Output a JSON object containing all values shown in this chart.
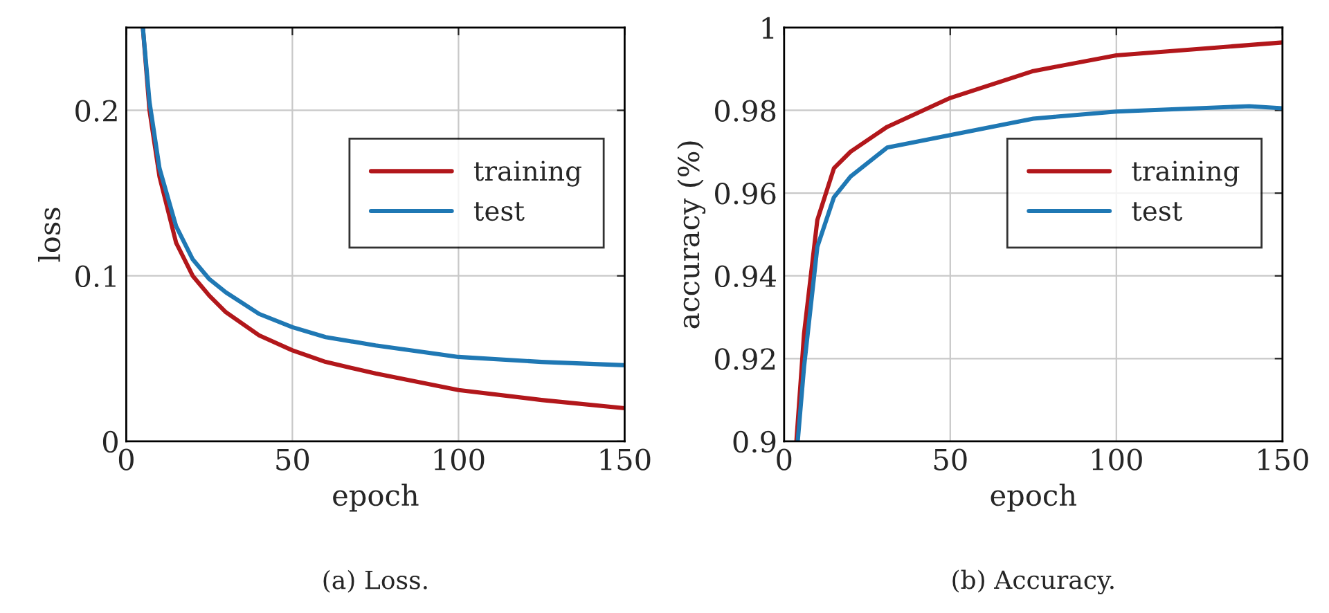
{
  "chart_data": [
    {
      "type": "line",
      "xlabel": "epoch",
      "ylabel": "loss",
      "xlim": [
        0,
        150
      ],
      "ylim": [
        0,
        0.25
      ],
      "xticks": [
        0,
        50,
        100,
        150
      ],
      "yticks": [
        0,
        0.1,
        0.2
      ],
      "grid": true,
      "legend": "right",
      "marker": "none",
      "line_style": "solid",
      "annotations": [
        "(a) Loss."
      ],
      "series": [
        {
          "name": "training",
          "color": "#b2171b",
          "x": [
            5,
            7,
            10,
            15,
            20,
            25,
            30,
            40,
            50,
            60,
            75,
            100,
            125,
            150
          ],
          "values": [
            0.25,
            0.2,
            0.16,
            0.12,
            0.1,
            0.088,
            0.078,
            0.064,
            0.055,
            0.048,
            0.041,
            0.031,
            0.025,
            0.02
          ]
        },
        {
          "name": "test",
          "color": "#1f78b4",
          "x": [
            5,
            7,
            10,
            15,
            20,
            25,
            30,
            40,
            50,
            60,
            75,
            100,
            125,
            150
          ],
          "values": [
            0.25,
            0.205,
            0.165,
            0.13,
            0.11,
            0.098,
            0.09,
            0.077,
            0.069,
            0.063,
            0.058,
            0.051,
            0.048,
            0.046
          ]
        }
      ]
    },
    {
      "type": "line",
      "xlabel": "epoch",
      "ylabel": "accuracy (%)",
      "xlim": [
        0,
        150
      ],
      "ylim": [
        0.9,
        1
      ],
      "xticks": [
        0,
        50,
        100,
        150
      ],
      "yticks": [
        0.9,
        0.92,
        0.94,
        0.96,
        0.98,
        1
      ],
      "grid": true,
      "legend": "right",
      "marker": "none",
      "line_style": "solid",
      "annotations": [
        "(b) Accuracy."
      ],
      "series": [
        {
          "name": "training",
          "color": "#b2171b",
          "x": [
            3.7,
            6,
            10,
            15,
            20,
            31,
            50,
            75,
            100,
            150
          ],
          "values": [
            0.9,
            0.926,
            0.9535,
            0.966,
            0.97,
            0.976,
            0.983,
            0.9895,
            0.9933,
            0.9964
          ]
        },
        {
          "name": "test",
          "color": "#1f78b4",
          "x": [
            4.1,
            6,
            10,
            15,
            20,
            31,
            50,
            75,
            100,
            140,
            150
          ],
          "values": [
            0.9,
            0.918,
            0.947,
            0.959,
            0.964,
            0.971,
            0.974,
            0.978,
            0.9797,
            0.981,
            0.9805
          ]
        }
      ]
    }
  ]
}
